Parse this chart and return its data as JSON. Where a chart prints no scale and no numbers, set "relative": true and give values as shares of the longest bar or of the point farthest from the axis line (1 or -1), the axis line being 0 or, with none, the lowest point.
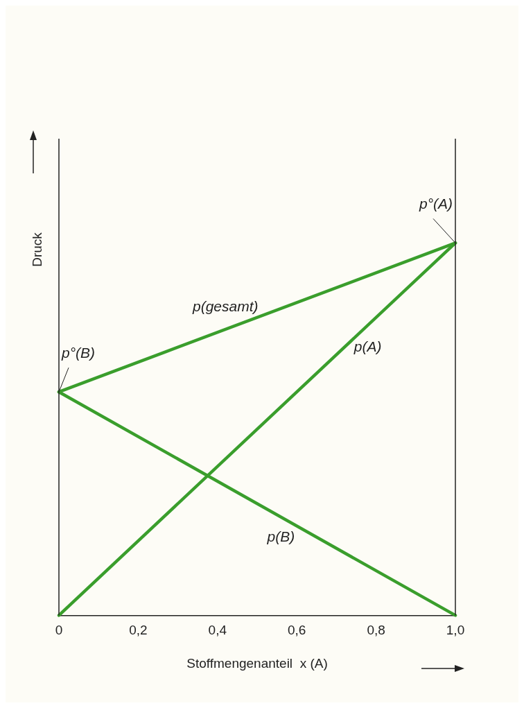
{
  "chart_data": {
    "type": "line",
    "relative": true,
    "xlabel": "Stoffmengenanteil  x (A)",
    "ylabel": "Druck",
    "xlim": [
      0,
      1
    ],
    "xticks": [
      0,
      {
        "value": 0.2,
        "label": "0,2"
      },
      {
        "value": 0.4,
        "label": "0,4"
      },
      {
        "value": 0.6,
        "label": "0,6"
      },
      {
        "value": 0.8,
        "label": "0,8"
      },
      {
        "value": 1,
        "label": "1,0"
      }
    ],
    "x": [
      0,
      1
    ],
    "grid": false,
    "legend": false,
    "marker": "none",
    "line_style": "solid",
    "series": [
      {
        "name": "p(gesamt)",
        "color": "#3a9e2c",
        "values": [
          0.6,
          1
        ]
      },
      {
        "name": "p(A)",
        "color": "#3a9e2c",
        "values": [
          0,
          1
        ]
      },
      {
        "name": "p(B)",
        "color": "#3a9e2c",
        "values": [
          0.6,
          0
        ]
      }
    ],
    "annotations": [
      {
        "text": "p°(A)",
        "x": 1,
        "y": 1
      },
      {
        "text": "p°(B)",
        "x": 0,
        "y": 0.6
      }
    ]
  }
}
